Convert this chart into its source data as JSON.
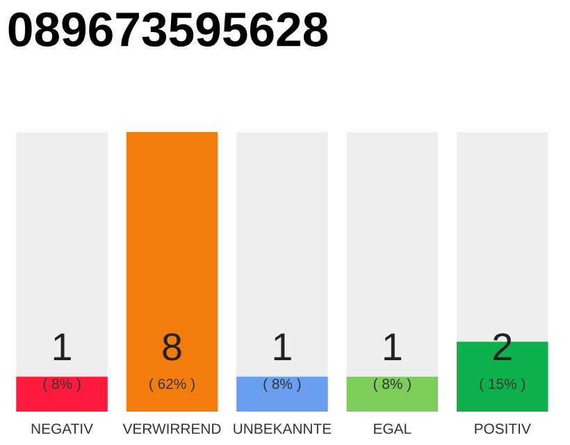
{
  "chart_data": {
    "type": "bar",
    "title": "089673595628",
    "categories": [
      "NEGATIV",
      "VERWIRREND",
      "UNBEKANNTE",
      "EGAL",
      "POSITIV"
    ],
    "values": [
      1,
      8,
      1,
      1,
      2
    ],
    "colors": [
      "#fd1a3c",
      "#f27d0c",
      "#6a9ef0",
      "#7dcd5a",
      "#0db14b"
    ],
    "data_labels": true,
    "annotations": [
      "( 8% )",
      "( 62% )",
      "( 8% )",
      "( 8% )",
      "( 15% )"
    ]
  }
}
